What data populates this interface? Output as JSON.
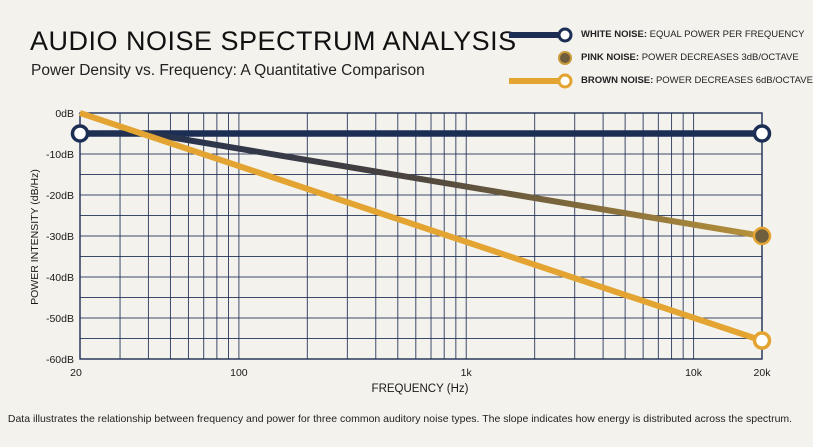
{
  "chart_data": {
    "type": "line",
    "title": "AUDIO NOISE SPECTRUM ANALYSIS",
    "subtitle": "Power Density vs. Frequency: A Quantitative Comparison",
    "xlabel": "FREQUENCY (Hz)",
    "ylabel": "POWER INTENSITY (dB/Hz)",
    "x_scale": "log",
    "xlim": [
      20,
      20000
    ],
    "ylim": [
      -60,
      0
    ],
    "x_ticks": [
      {
        "value": 20,
        "label": "20"
      },
      {
        "value": 100,
        "label": "100"
      },
      {
        "value": 1000,
        "label": "1k"
      },
      {
        "value": 10000,
        "label": "10k"
      },
      {
        "value": 20000,
        "label": "20k"
      }
    ],
    "y_ticks": [
      {
        "value": 0,
        "label": "0dB"
      },
      {
        "value": -10,
        "label": "-10dB"
      },
      {
        "value": -20,
        "label": "-20dB"
      },
      {
        "value": -30,
        "label": "-30dB"
      },
      {
        "value": -40,
        "label": "-40dB"
      },
      {
        "value": -50,
        "label": "-50dB"
      },
      {
        "value": -60,
        "label": "-60dB"
      }
    ],
    "grid": true,
    "legend_position": "top-right",
    "series": [
      {
        "name": "WHITE NOISE",
        "description": "EQUAL POWER PER FREQUENCY",
        "color": "#1c2e54",
        "x": [
          20,
          20000
        ],
        "y": [
          -5,
          -5
        ]
      },
      {
        "name": "PINK NOISE",
        "description": "POWER DECREASES 3dB/OCTAVE",
        "color": "#3a3a4a",
        "color_end": "#a88a3c",
        "x": [
          20,
          40,
          20000
        ],
        "y": [
          -5,
          -5,
          -30
        ]
      },
      {
        "name": "BROWN NOISE",
        "description": "POWER DECREASES 6dB/OCTAVE",
        "color": "#e3a431",
        "x": [
          20,
          20000
        ],
        "y": [
          0,
          -55.5
        ]
      }
    ]
  },
  "footnote": "Data illustrates the relationship between frequency and power for three common auditory noise types. The slope indicates how energy is distributed across the spectrum."
}
